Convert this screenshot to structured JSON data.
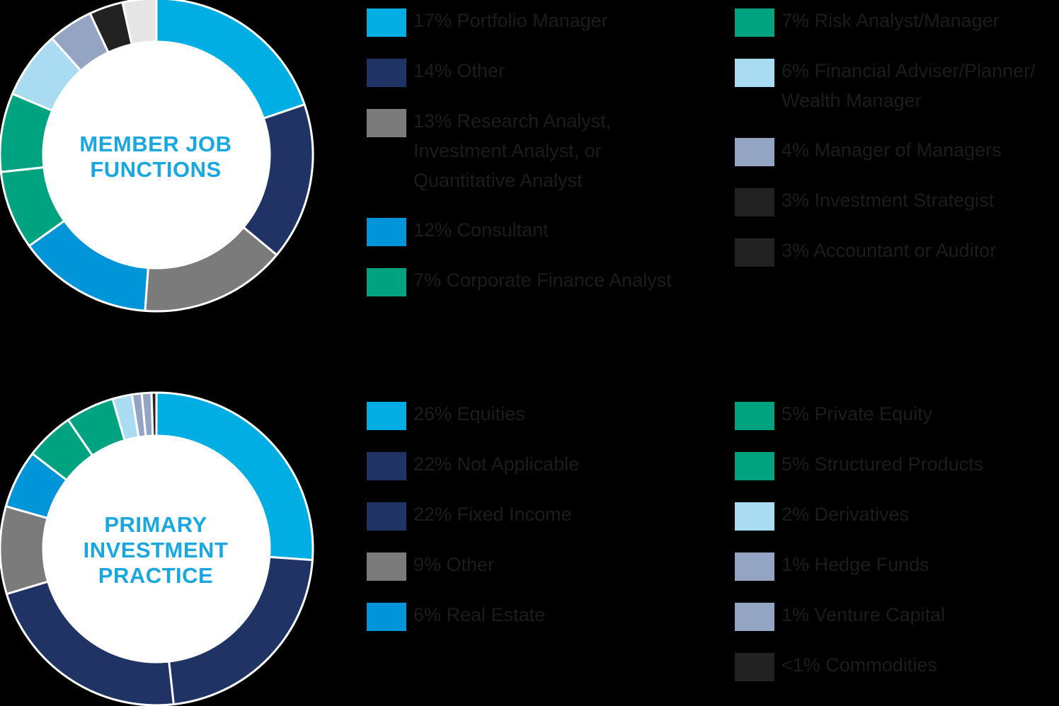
{
  "chart_data": [
    {
      "type": "pie",
      "title": "MEMBER JOB FUNCTIONS",
      "title_lines": [
        "MEMBER JOB",
        "FUNCTIONS"
      ],
      "donut": true,
      "slices": [
        {
          "label_lines": [
            "17% Portfolio Manager"
          ],
          "value": 17,
          "color": "#00aee3"
        },
        {
          "label_lines": [
            "14% Other"
          ],
          "value": 14,
          "color": "#1f3464"
        },
        {
          "label_lines": [
            "13% Research Analyst,",
            "Investment Analyst, or",
            "Quantitative Analyst"
          ],
          "value": 13,
          "color": "#7b7b7b"
        },
        {
          "label_lines": [
            "12% Consultant"
          ],
          "value": 12,
          "color": "#0095d9"
        },
        {
          "label_lines": [
            "7% Corporate Finance Analyst"
          ],
          "value": 7,
          "color": "#00a37f"
        },
        {
          "label_lines": [
            "7% Risk Analyst/Manager"
          ],
          "value": 7,
          "color": "#00a37f"
        },
        {
          "label_lines": [
            "6% Financial Adviser/Planner/",
            "Wealth Manager"
          ],
          "value": 6,
          "color": "#a9dcf3"
        },
        {
          "label_lines": [
            "4% Manager of Managers"
          ],
          "value": 4,
          "color": "#94a5c4"
        },
        {
          "label_lines": [
            "3% Investment Strategist"
          ],
          "value": 3,
          "color": "#222222"
        },
        {
          "label_lines": [
            "3% Accountant or Auditor"
          ],
          "value": 3,
          "color": "#e6e6e6"
        }
      ],
      "legend_swatch_colors": [
        "#00aee3",
        "#1f3464",
        "#7b7b7b",
        "#0095d9",
        "#00a37f",
        "#00a37f",
        "#a9dcf3",
        "#94a5c4",
        "#222222",
        "#222222"
      ]
    },
    {
      "type": "pie",
      "title": "PRIMARY INVESTMENT PRACTICE",
      "title_lines": [
        "PRIMARY",
        "INVESTMENT",
        "PRACTICE"
      ],
      "donut": true,
      "slices": [
        {
          "label_lines": [
            "26% Equities"
          ],
          "value": 26,
          "color": "#00aee3"
        },
        {
          "label_lines": [
            "22% Not Applicable"
          ],
          "value": 22,
          "color": "#1f3464"
        },
        {
          "label_lines": [
            "22% Fixed Income"
          ],
          "value": 22,
          "color": "#1f3464"
        },
        {
          "label_lines": [
            "9% Other"
          ],
          "value": 9,
          "color": "#7b7b7b"
        },
        {
          "label_lines": [
            "6% Real Estate"
          ],
          "value": 6,
          "color": "#0095d9"
        },
        {
          "label_lines": [
            "5% Private Equity"
          ],
          "value": 5,
          "color": "#00a37f"
        },
        {
          "label_lines": [
            "5% Structured Products"
          ],
          "value": 5,
          "color": "#00a37f"
        },
        {
          "label_lines": [
            "2% Derivatives"
          ],
          "value": 2,
          "color": "#a9dcf3"
        },
        {
          "label_lines": [
            "1% Hedge Funds"
          ],
          "value": 1,
          "color": "#94a5c4"
        },
        {
          "label_lines": [
            "1% Venture Capital"
          ],
          "value": 1,
          "color": "#94a5c4"
        },
        {
          "label_lines": [
            "<1% Commodities"
          ],
          "value": 0.5,
          "color": "#222222"
        }
      ],
      "legend_swatch_colors": [
        "#00aee3",
        "#1f3464",
        "#1f3464",
        "#7b7b7b",
        "#0095d9",
        "#00a37f",
        "#00a37f",
        "#a9dcf3",
        "#94a5c4",
        "#94a5c4",
        "#222222"
      ]
    }
  ]
}
